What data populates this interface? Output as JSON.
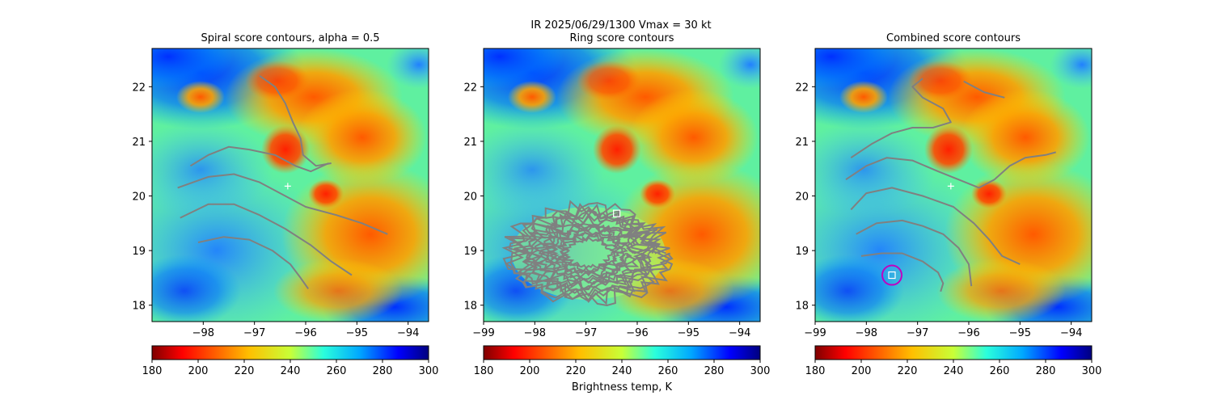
{
  "suptitle": "IR  2025/06/29/1300    Vmax = 30 kt",
  "colors": {
    "contour": "#808080",
    "marker": "#ffffff",
    "circle": "#c000c0"
  },
  "chart_data": [
    {
      "type": "heatmap",
      "title": "Spiral score contours, alpha =  0.5",
      "xlim": [
        -99.0,
        -93.6
      ],
      "ylim": [
        17.7,
        22.7
      ],
      "xticks": [
        -98,
        -97,
        -96,
        -95,
        -94
      ],
      "xtick_labels": [
        "−98",
        "−97",
        "−96",
        "−95",
        "−94"
      ],
      "yticks": [
        18,
        19,
        20,
        21,
        22
      ],
      "ytick_labels": [
        "18",
        "19",
        "20",
        "21",
        "22"
      ],
      "colormap": "jet_r",
      "colorbar": {
        "vmin": 180,
        "vmax": 300,
        "ticks": [
          180,
          200,
          220,
          240,
          260,
          280,
          300
        ],
        "label": ""
      },
      "center_marker": {
        "symbol": "+",
        "lon": -96.35,
        "lat": 20.18
      },
      "contours": [
        [
          [
            -98.25,
            20.55
          ],
          [
            -97.9,
            20.75
          ],
          [
            -97.5,
            20.9
          ],
          [
            -97.1,
            20.85
          ],
          [
            -96.6,
            20.75
          ],
          [
            -96.2,
            20.55
          ],
          [
            -95.9,
            20.45
          ],
          [
            -95.55,
            20.6
          ]
        ],
        [
          [
            -98.5,
            20.15
          ],
          [
            -97.9,
            20.35
          ],
          [
            -97.4,
            20.4
          ],
          [
            -96.9,
            20.25
          ],
          [
            -96.4,
            20.0
          ],
          [
            -96.0,
            19.8
          ],
          [
            -95.4,
            19.65
          ],
          [
            -94.9,
            19.5
          ],
          [
            -94.4,
            19.3
          ]
        ],
        [
          [
            -98.45,
            19.6
          ],
          [
            -97.9,
            19.85
          ],
          [
            -97.4,
            19.85
          ],
          [
            -96.9,
            19.65
          ],
          [
            -96.4,
            19.4
          ],
          [
            -95.9,
            19.1
          ],
          [
            -95.5,
            18.8
          ],
          [
            -95.1,
            18.55
          ]
        ],
        [
          [
            -98.1,
            19.15
          ],
          [
            -97.6,
            19.25
          ],
          [
            -97.1,
            19.2
          ],
          [
            -96.65,
            19.0
          ],
          [
            -96.3,
            18.75
          ],
          [
            -96.1,
            18.5
          ],
          [
            -95.95,
            18.3
          ]
        ],
        [
          [
            -96.9,
            22.2
          ],
          [
            -96.6,
            22.0
          ],
          [
            -96.4,
            21.7
          ],
          [
            -96.25,
            21.35
          ],
          [
            -96.1,
            21.05
          ],
          [
            -96.05,
            20.75
          ],
          [
            -95.8,
            20.55
          ],
          [
            -95.5,
            20.6
          ]
        ]
      ]
    },
    {
      "type": "heatmap",
      "title": "Ring score contours",
      "xlim": [
        -99.0,
        -93.6
      ],
      "ylim": [
        17.7,
        22.7
      ],
      "xticks": [
        -99,
        -98,
        -97,
        -96,
        -95,
        -94
      ],
      "xtick_labels": [
        "−99",
        "−98",
        "−97",
        "−96",
        "−95",
        "−94"
      ],
      "yticks": [
        18,
        19,
        20,
        21,
        22
      ],
      "ytick_labels": [
        "18",
        "19",
        "20",
        "21",
        "22"
      ],
      "colormap": "jet_r",
      "colorbar": {
        "vmin": 180,
        "vmax": 300,
        "ticks": [
          180,
          200,
          220,
          240,
          260,
          280,
          300
        ],
        "label": "Brightness temp, K"
      },
      "center_marker": {
        "symbol": "square",
        "lon": -96.4,
        "lat": 19.68
      },
      "ring_region": {
        "center_lon": -96.95,
        "center_lat": 18.95,
        "radius_lon": 1.5,
        "radius_lat": 0.85
      },
      "contours": []
    },
    {
      "type": "heatmap",
      "title": "Combined score contours",
      "xlim": [
        -99.0,
        -93.6
      ],
      "ylim": [
        17.7,
        22.7
      ],
      "xticks": [
        -99,
        -98,
        -97,
        -96,
        -95,
        -94
      ],
      "xtick_labels": [
        "−99",
        "−98",
        "−97",
        "−96",
        "−95",
        "−94"
      ],
      "yticks": [
        18,
        19,
        20,
        21,
        22
      ],
      "ytick_labels": [
        "18",
        "19",
        "20",
        "21",
        "22"
      ],
      "colormap": "jet_r",
      "colorbar": {
        "vmin": 180,
        "vmax": 300,
        "ticks": [
          180,
          200,
          220,
          240,
          260,
          280,
          300
        ],
        "label": ""
      },
      "center_marker": {
        "symbol": "square",
        "lon": -97.5,
        "lat": 18.55
      },
      "circle_marker": {
        "lon": -97.5,
        "lat": 18.55
      },
      "plus_marker": {
        "lon": -96.35,
        "lat": 20.18
      },
      "contours": [
        [
          [
            -98.3,
            20.7
          ],
          [
            -97.9,
            20.95
          ],
          [
            -97.5,
            21.15
          ],
          [
            -97.1,
            21.25
          ],
          [
            -96.7,
            21.25
          ],
          [
            -96.35,
            21.35
          ],
          [
            -96.5,
            21.6
          ],
          [
            -96.9,
            21.8
          ],
          [
            -97.1,
            22.0
          ],
          [
            -96.9,
            22.15
          ]
        ],
        [
          [
            -96.1,
            22.1
          ],
          [
            -95.7,
            21.9
          ],
          [
            -95.3,
            21.8
          ]
        ],
        [
          [
            -98.4,
            20.3
          ],
          [
            -98.0,
            20.55
          ],
          [
            -97.6,
            20.7
          ],
          [
            -97.1,
            20.65
          ],
          [
            -96.6,
            20.45
          ],
          [
            -96.2,
            20.3
          ],
          [
            -95.8,
            20.15
          ],
          [
            -95.5,
            20.3
          ],
          [
            -95.2,
            20.55
          ],
          [
            -94.9,
            20.7
          ],
          [
            -94.5,
            20.75
          ],
          [
            -94.3,
            20.8
          ]
        ],
        [
          [
            -98.3,
            19.75
          ],
          [
            -98.0,
            20.05
          ],
          [
            -97.5,
            20.15
          ],
          [
            -96.9,
            20.0
          ],
          [
            -96.3,
            19.8
          ],
          [
            -95.9,
            19.5
          ],
          [
            -95.6,
            19.2
          ],
          [
            -95.35,
            18.9
          ],
          [
            -95.0,
            18.75
          ]
        ],
        [
          [
            -98.2,
            19.3
          ],
          [
            -97.8,
            19.5
          ],
          [
            -97.3,
            19.55
          ],
          [
            -96.9,
            19.45
          ],
          [
            -96.5,
            19.3
          ],
          [
            -96.2,
            19.05
          ],
          [
            -96.0,
            18.75
          ],
          [
            -95.95,
            18.35
          ]
        ],
        [
          [
            -98.1,
            18.9
          ],
          [
            -97.7,
            18.95
          ],
          [
            -97.3,
            18.95
          ],
          [
            -96.9,
            18.8
          ],
          [
            -96.6,
            18.6
          ],
          [
            -96.5,
            18.4
          ],
          [
            -96.55,
            18.25
          ]
        ]
      ]
    }
  ]
}
